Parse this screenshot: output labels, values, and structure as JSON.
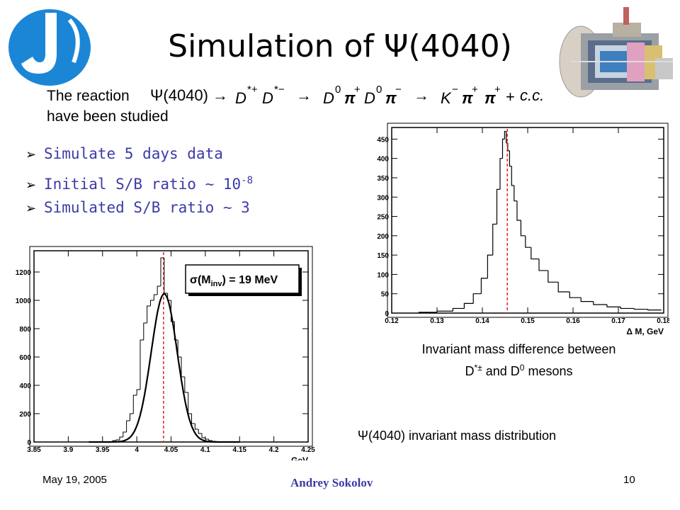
{
  "slide": {
    "title": "Simulation of Ψ(4040)",
    "reaction_label_line1": "The reaction",
    "reaction_label_line2": "have been studied",
    "formula": {
      "psi": "Ψ(4040)",
      "arrow": "→",
      "d_star_plus": "D",
      "d_star_plus_sup": "*+",
      "d_star_minus": "D",
      "d_star_minus_sup": "*−",
      "d0_a": "D",
      "d0_a_sup": "0",
      "pi_plus": "π",
      "pi_plus_sup": "+",
      "d0_b": "D",
      "d0_b_sup": "0",
      "pi_minus": "π",
      "pi_minus_sup": "−",
      "k_minus": "K",
      "k_minus_sup": "−",
      "pi_plus_2": "π",
      "pi_plus_2_sup": "+",
      "pi_plus_3": "π",
      "pi_plus_3_sup": "+",
      "plus": "+",
      "cc": "c.c."
    },
    "bullets": [
      {
        "text": "Simulate 5 days data",
        "sup": ""
      },
      {
        "text": "Initial S/B ratio ∼ 10",
        "sup": "-8"
      },
      {
        "text": "Simulated S/B ratio ∼ 3",
        "sup": ""
      }
    ],
    "caption_right_line1": "Invariant mass difference between",
    "caption_right_line2_a": "D",
    "caption_right_line2_sup1": "*±",
    "caption_right_line2_b": " and D",
    "caption_right_line2_sup2": "0",
    "caption_right_line2_c": " mesons",
    "caption_left": "Ψ(4040) invariant mass distribution",
    "footer_date": "May 19, 2005",
    "footer_author": "Andrey Sokolov",
    "footer_page": "10",
    "colors": {
      "accent": "#3b3ba6",
      "logo": "#1c86d6",
      "dashed_line": "#e02020"
    }
  },
  "chart_data": [
    {
      "type": "histogram",
      "id": "mass-diff",
      "xlabel": "Δ M, GeV",
      "xlim": [
        0.12,
        0.18
      ],
      "ylim": [
        0,
        480
      ],
      "xticks": [
        "0.12",
        "0.13",
        "0.14",
        "0.15",
        "0.16",
        "0.17",
        "0.18"
      ],
      "yticks": [
        "0",
        "50",
        "100",
        "150",
        "200",
        "250",
        "300",
        "350",
        "400",
        "450"
      ],
      "marker_x": 0.1455,
      "x": [
        0.128,
        0.132,
        0.135,
        0.137,
        0.139,
        0.1405,
        0.1418,
        0.1428,
        0.1436,
        0.1442,
        0.1447,
        0.1451,
        0.1454,
        0.1458,
        0.1462,
        0.1467,
        0.1473,
        0.148,
        0.149,
        0.15,
        0.1515,
        0.1535,
        0.1555,
        0.158,
        0.1605,
        0.163,
        0.166,
        0.169,
        0.172,
        0.175,
        0.178
      ],
      "values": [
        2,
        5,
        12,
        25,
        50,
        90,
        150,
        230,
        320,
        400,
        450,
        470,
        440,
        420,
        380,
        330,
        290,
        240,
        200,
        170,
        140,
        110,
        80,
        55,
        40,
        30,
        22,
        16,
        12,
        10,
        8
      ]
    },
    {
      "type": "histogram",
      "id": "inv-mass",
      "xlabel": "GeV",
      "annotation": "σ(M",
      "annotation_sub": "inv",
      "annotation_rest": ") = 19 MeV",
      "xlim": [
        3.85,
        4.25
      ],
      "ylim": [
        0,
        1350
      ],
      "xticks": [
        "3.85",
        "3.9",
        "3.95",
        "4",
        "4.05",
        "4.1",
        "4.15",
        "4.2",
        "4.25"
      ],
      "yticks": [
        "0",
        "200",
        "400",
        "600",
        "800",
        "1000",
        "1200"
      ],
      "marker_x": 4.039,
      "fit": {
        "mean": 4.04,
        "sigma": 0.019,
        "amplitude": 1045
      },
      "x": [
        3.9625,
        3.9675,
        3.9725,
        3.9775,
        3.9825,
        3.9875,
        3.9925,
        3.9975,
        4.0025,
        4.0075,
        4.0125,
        4.0175,
        4.0225,
        4.0275,
        4.0325,
        4.0375,
        4.0425,
        4.0475,
        4.0525,
        4.0575,
        4.0625,
        4.0675,
        4.0725,
        4.0775,
        4.0825,
        4.0875,
        4.0925,
        4.0975,
        4.1025,
        4.1075,
        4.1125
      ],
      "values": [
        0,
        10,
        15,
        35,
        70,
        150,
        200,
        330,
        370,
        720,
        840,
        960,
        1000,
        1040,
        1100,
        1300,
        1050,
        1000,
        850,
        720,
        600,
        460,
        350,
        200,
        130,
        90,
        60,
        30,
        20,
        10,
        5
      ]
    }
  ]
}
